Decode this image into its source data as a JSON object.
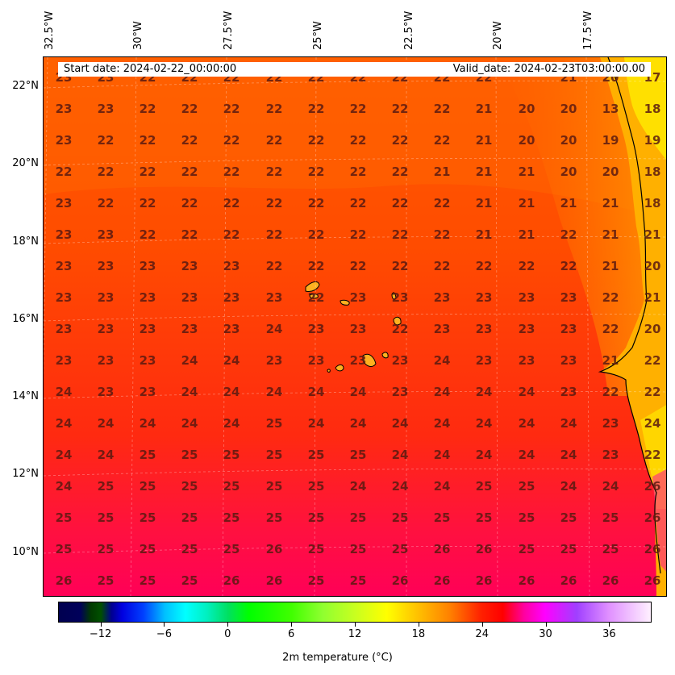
{
  "map": {
    "start_date": "Start date: 2024-02-22_00:00:00",
    "valid_date": "Valid_date: 2024-02-23T03:00:00.00",
    "lon_labels": [
      "32.5°W",
      "30°W",
      "27.5°W",
      "25°W",
      "22.5°W",
      "20°W",
      "17.5°W"
    ],
    "lat_labels": [
      "22°N",
      "20°N",
      "18°N",
      "16°N",
      "14°N",
      "12°N",
      "10°N"
    ],
    "temperature_grid": [
      [
        "23",
        "23",
        "22",
        "22",
        "22",
        "22",
        "22",
        "22",
        "22",
        "22",
        "22",
        "21",
        "20",
        "17"
      ],
      [
        "23",
        "23",
        "22",
        "22",
        "22",
        "22",
        "22",
        "22",
        "22",
        "22",
        "21",
        "20",
        "20",
        "13",
        "18"
      ],
      [
        "23",
        "22",
        "22",
        "22",
        "22",
        "22",
        "22",
        "22",
        "22",
        "22",
        "21",
        "20",
        "20",
        "19",
        "19"
      ],
      [
        "22",
        "22",
        "22",
        "22",
        "22",
        "22",
        "22",
        "22",
        "22",
        "21",
        "21",
        "21",
        "20",
        "20",
        "18"
      ],
      [
        "23",
        "22",
        "22",
        "22",
        "22",
        "22",
        "22",
        "22",
        "22",
        "22",
        "21",
        "21",
        "21",
        "21",
        "18"
      ],
      [
        "23",
        "23",
        "22",
        "22",
        "22",
        "22",
        "22",
        "22",
        "22",
        "22",
        "21",
        "21",
        "22",
        "21",
        "21"
      ],
      [
        "23",
        "23",
        "23",
        "23",
        "23",
        "22",
        "22",
        "22",
        "22",
        "22",
        "22",
        "22",
        "22",
        "21",
        "20"
      ],
      [
        "23",
        "23",
        "23",
        "23",
        "23",
        "23",
        "22",
        "23",
        "23",
        "23",
        "23",
        "23",
        "23",
        "22",
        "21"
      ],
      [
        "23",
        "23",
        "23",
        "23",
        "23",
        "24",
        "23",
        "23",
        "22",
        "23",
        "23",
        "23",
        "23",
        "22",
        "20"
      ],
      [
        "23",
        "23",
        "23",
        "24",
        "24",
        "23",
        "23",
        "23",
        "23",
        "24",
        "23",
        "23",
        "23",
        "21",
        "22"
      ],
      [
        "24",
        "23",
        "23",
        "24",
        "24",
        "24",
        "24",
        "24",
        "23",
        "24",
        "24",
        "24",
        "23",
        "22",
        "22"
      ],
      [
        "24",
        "24",
        "24",
        "24",
        "24",
        "25",
        "24",
        "24",
        "24",
        "24",
        "24",
        "24",
        "24",
        "23",
        "24"
      ],
      [
        "24",
        "24",
        "25",
        "25",
        "25",
        "25",
        "25",
        "25",
        "24",
        "24",
        "24",
        "24",
        "24",
        "23",
        "22"
      ],
      [
        "24",
        "25",
        "25",
        "25",
        "25",
        "25",
        "25",
        "24",
        "24",
        "24",
        "25",
        "25",
        "24",
        "24",
        "26"
      ],
      [
        "25",
        "25",
        "25",
        "25",
        "25",
        "25",
        "25",
        "25",
        "25",
        "25",
        "25",
        "25",
        "25",
        "25",
        "26"
      ],
      [
        "25",
        "25",
        "25",
        "25",
        "25",
        "26",
        "25",
        "25",
        "25",
        "26",
        "26",
        "25",
        "25",
        "25",
        "26"
      ],
      [
        "26",
        "25",
        "25",
        "25",
        "26",
        "26",
        "25",
        "25",
        "26",
        "26",
        "26",
        "26",
        "26",
        "26",
        "26"
      ]
    ],
    "colors": {
      "land_yellow": "#ffc800",
      "sea_red": "#ff3a00",
      "sea_orange": "#ff5a00",
      "south_pink": "#ff0050"
    }
  },
  "colorbar": {
    "ticks": [
      "−12",
      "−6",
      "0",
      "6",
      "12",
      "18",
      "24",
      "30",
      "36"
    ],
    "tick_values": [
      -12,
      -6,
      0,
      6,
      12,
      18,
      24,
      30,
      36
    ],
    "range": [
      -16,
      40
    ],
    "title": "2m temperature ($^\\circ$C)",
    "title_display": "2m temperature (°C)"
  }
}
